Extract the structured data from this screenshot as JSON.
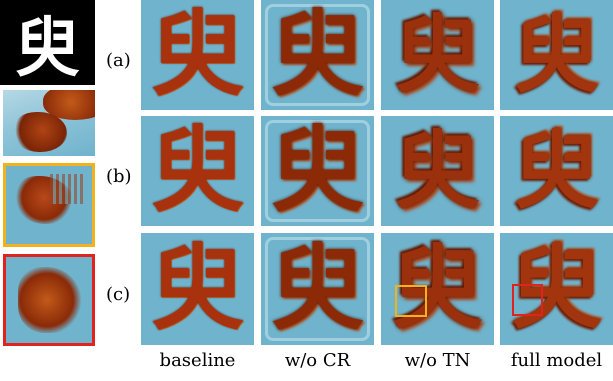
{
  "figure": {
    "reference_glyph": "臾",
    "row_labels": [
      "(a)",
      "(b)",
      "(c)"
    ],
    "column_labels": [
      "baseline",
      "w/o CR",
      "w/o TN",
      "full model"
    ],
    "colors": {
      "sky": "#6fb3cc",
      "leaf": "#a8320e",
      "yellow_box": "#f2b21c",
      "red_box": "#e0231e"
    }
  }
}
